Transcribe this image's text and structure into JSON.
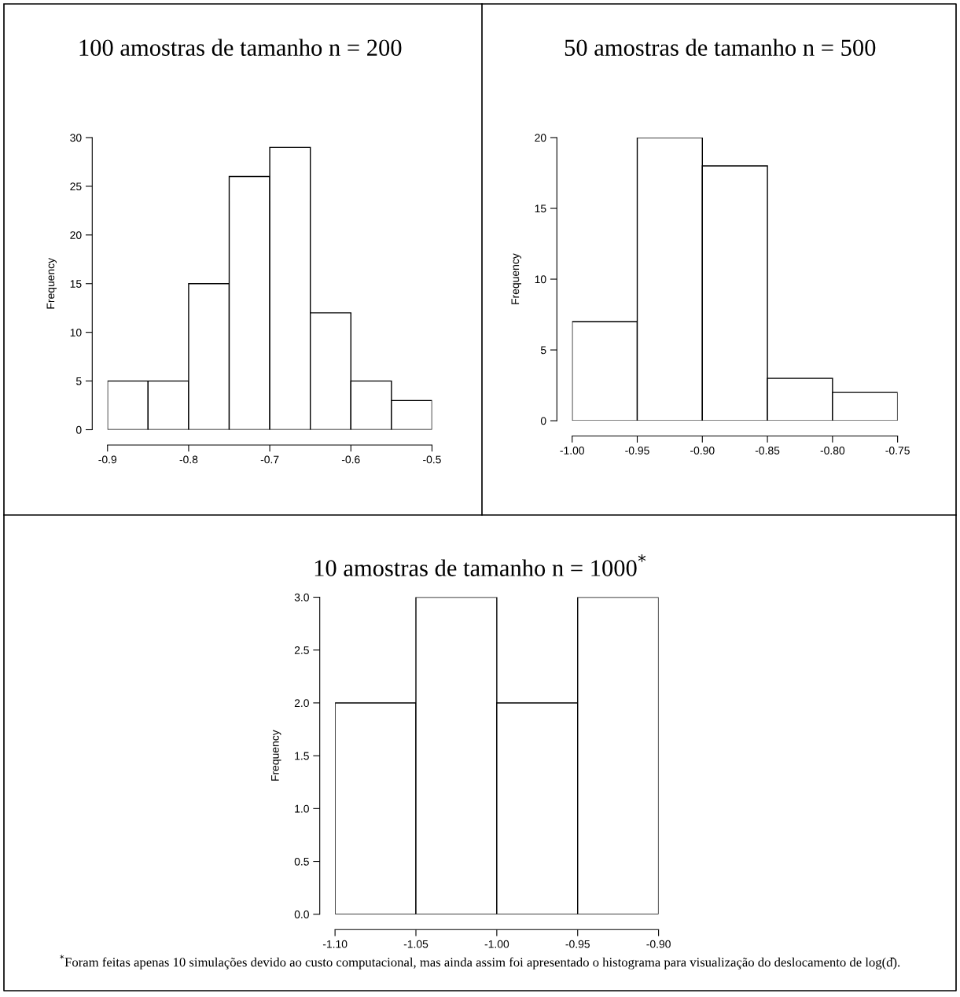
{
  "chart_data": [
    {
      "type": "histogram",
      "title": "100 amostras de tamanho n = 200",
      "ylabel": "Frequency",
      "bins": [
        -0.9,
        -0.85,
        -0.8,
        -0.75,
        -0.7,
        -0.65,
        -0.6,
        -0.55,
        -0.5
      ],
      "values": [
        5,
        5,
        15,
        26,
        29,
        12,
        5,
        3
      ],
      "color": "#ffffff",
      "xlim": [
        -0.9,
        -0.5
      ],
      "xticks": [
        -0.9,
        -0.8,
        -0.7,
        -0.6,
        -0.5
      ],
      "ylim": [
        0,
        30
      ],
      "yticks": [
        0,
        5,
        10,
        15,
        20,
        25,
        30
      ],
      "grid": false
    },
    {
      "type": "histogram",
      "title": "50 amostras de tamanho n = 500",
      "ylabel": "Frequency",
      "bins": [
        -1.0,
        -0.95,
        -0.9,
        -0.85,
        -0.8,
        -0.75
      ],
      "values": [
        7,
        20,
        18,
        3,
        2
      ],
      "color": "#ffffff",
      "xlim": [
        -1.0,
        -0.75
      ],
      "xticks": [
        {
          "value": -1.0,
          "label": "-1.00"
        },
        {
          "value": -0.95,
          "label": "-0.95"
        },
        {
          "value": -0.9,
          "label": "-0.90"
        },
        {
          "value": -0.85,
          "label": "-0.85"
        },
        {
          "value": -0.8,
          "label": "-0.80"
        },
        {
          "value": -0.75,
          "label": "-0.75"
        }
      ],
      "ylim": [
        0,
        20
      ],
      "yticks": [
        0,
        5,
        10,
        15,
        20
      ],
      "grid": false
    },
    {
      "type": "histogram",
      "title": "10 amostras de tamanho n = 1000$^{*}$",
      "ylabel": "Frequency",
      "bins": [
        -1.1,
        -1.05,
        -1.0,
        -0.95,
        -0.9
      ],
      "values": [
        2,
        3,
        2,
        3
      ],
      "color": "#ffffff",
      "xlim": [
        -1.1,
        -0.9
      ],
      "xticks": [
        {
          "value": -1.1,
          "label": "-1.10"
        },
        {
          "value": -1.05,
          "label": "-1.05"
        },
        {
          "value": -1.0,
          "label": "-1.00"
        },
        {
          "value": -0.95,
          "label": "-0.95"
        },
        {
          "value": -0.9,
          "label": "-0.90"
        }
      ],
      "ylim": [
        0,
        3
      ],
      "yticks": [
        {
          "value": 0,
          "label": "0.0"
        },
        {
          "value": 0.5,
          "label": "0.5"
        },
        {
          "value": 1.0,
          "label": "1.0"
        },
        {
          "value": 1.5,
          "label": "1.5"
        },
        {
          "value": 2.0,
          "label": "2.0"
        },
        {
          "value": 2.5,
          "label": "2.5"
        },
        {
          "value": 3.0,
          "label": "3.0"
        }
      ],
      "grid": false,
      "annotations": [
        "$^{*}$Foram feitas apenas 10 simulações devido ao custo computacional, mas ainda assim foi apresentado o histograma para visualização do deslocamento de log(d̂)."
      ]
    }
  ]
}
